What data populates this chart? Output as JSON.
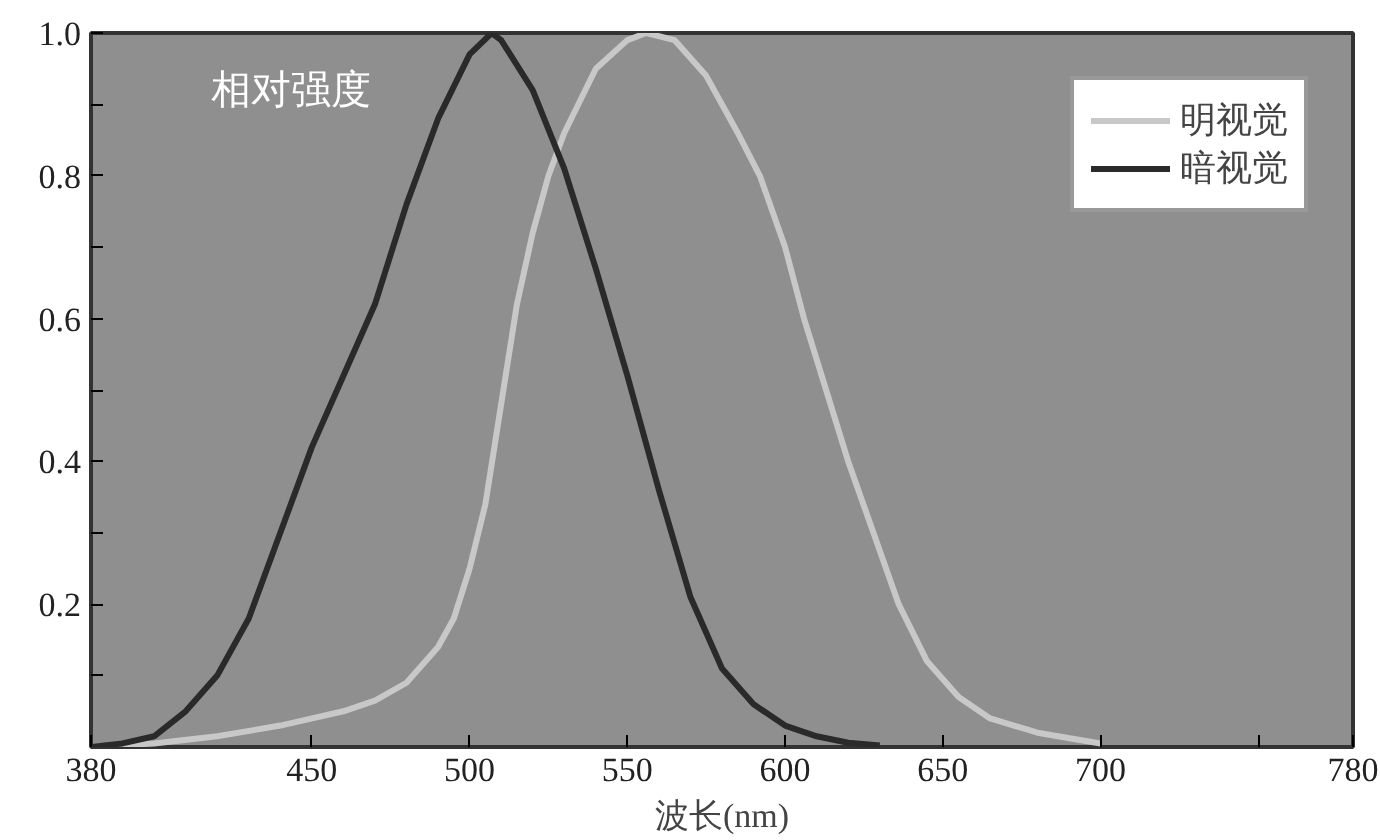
{
  "chart_data": {
    "type": "line",
    "xlabel": "波长(nm)",
    "annotations": [
      "相对强度"
    ],
    "xlim": [
      380,
      780
    ],
    "ylim": [
      0,
      1
    ],
    "xticks": [
      380,
      450,
      500,
      550,
      600,
      650,
      700,
      {
        "value": 750,
        "label": null
      },
      780
    ],
    "yticks": [
      {
        "value": 0.1,
        "label": null
      },
      0.2,
      {
        "value": 0.3,
        "label": null
      },
      0.4,
      {
        "value": 0.5,
        "label": null
      },
      0.6,
      {
        "value": 0.7,
        "label": null
      },
      0.8,
      {
        "value": 0.9,
        "label": null
      },
      {
        "value": 1,
        "label": "1.0"
      }
    ],
    "grid": false,
    "legend": "top right",
    "marker": "none",
    "line_style": "solid",
    "series": [
      {
        "name": "明视觉",
        "color": "#c8c8c8",
        "x": [
          380,
          400,
          420,
          440,
          460,
          470,
          480,
          490,
          495,
          500,
          505,
          510,
          515,
          520,
          525,
          530,
          540,
          550,
          556,
          565,
          575,
          585,
          592,
          600,
          606,
          613,
          620,
          628,
          636,
          645,
          655,
          665,
          680,
          700
        ],
        "values": [
          0,
          0.005,
          0.015,
          0.03,
          0.05,
          0.065,
          0.09,
          0.14,
          0.18,
          0.25,
          0.34,
          0.48,
          0.62,
          0.72,
          0.8,
          0.86,
          0.95,
          0.99,
          1.0,
          0.99,
          0.94,
          0.86,
          0.8,
          0.7,
          0.6,
          0.5,
          0.4,
          0.3,
          0.2,
          0.12,
          0.07,
          0.04,
          0.02,
          0.005
        ]
      },
      {
        "name": "暗视觉",
        "color": "#2a2a2a",
        "x": [
          380,
          390,
          400,
          410,
          420,
          430,
          440,
          450,
          460,
          470,
          480,
          490,
          500,
          507,
          510,
          520,
          530,
          540,
          550,
          560,
          570,
          580,
          590,
          600,
          610,
          620,
          630
        ],
        "values": [
          0,
          0.005,
          0.015,
          0.05,
          0.1,
          0.18,
          0.3,
          0.42,
          0.52,
          0.62,
          0.76,
          0.88,
          0.97,
          1.0,
          0.99,
          0.92,
          0.81,
          0.67,
          0.52,
          0.36,
          0.21,
          0.11,
          0.06,
          0.03,
          0.015,
          0.006,
          0.002
        ]
      }
    ]
  }
}
